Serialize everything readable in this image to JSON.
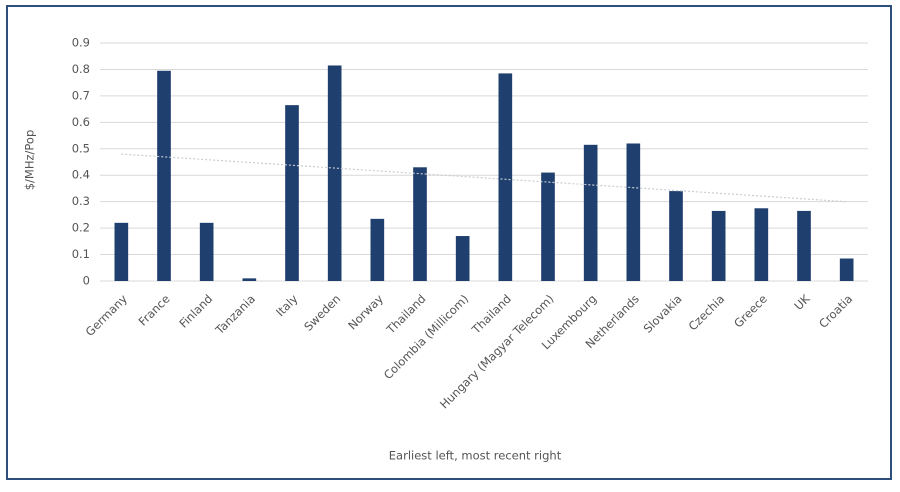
{
  "chart_data": {
    "type": "bar",
    "y_label": "$/MHz/Pop",
    "x_label": "Earliest left, most recent right",
    "categories": [
      "Germany",
      "France",
      "Finland",
      "Tanzania",
      "Italy",
      "Sweden",
      "Norway",
      "Thailand",
      "Colombia (Millicom)",
      "Thailand",
      "Hungary (Magyar Telecom)",
      "Luxembourg",
      "Netherlands",
      "Slovakia",
      "Czechia",
      "Greece",
      "UK",
      "Croatia"
    ],
    "values": [
      0.22,
      0.795,
      0.22,
      0.01,
      0.665,
      0.815,
      0.235,
      0.43,
      0.17,
      0.785,
      0.41,
      0.515,
      0.52,
      0.34,
      0.265,
      0.275,
      0.265,
      0.085
    ],
    "color": "#1f3f6e",
    "trendline": {
      "values": [
        0.48,
        0.3
      ],
      "color": "#c9cdd3"
    },
    "ylim": [
      0,
      0.9
    ],
    "yticks": [
      0,
      0.1,
      0.2,
      0.3,
      0.4,
      0.5,
      0.6,
      0.7,
      0.8,
      0.9
    ],
    "grid": true
  }
}
